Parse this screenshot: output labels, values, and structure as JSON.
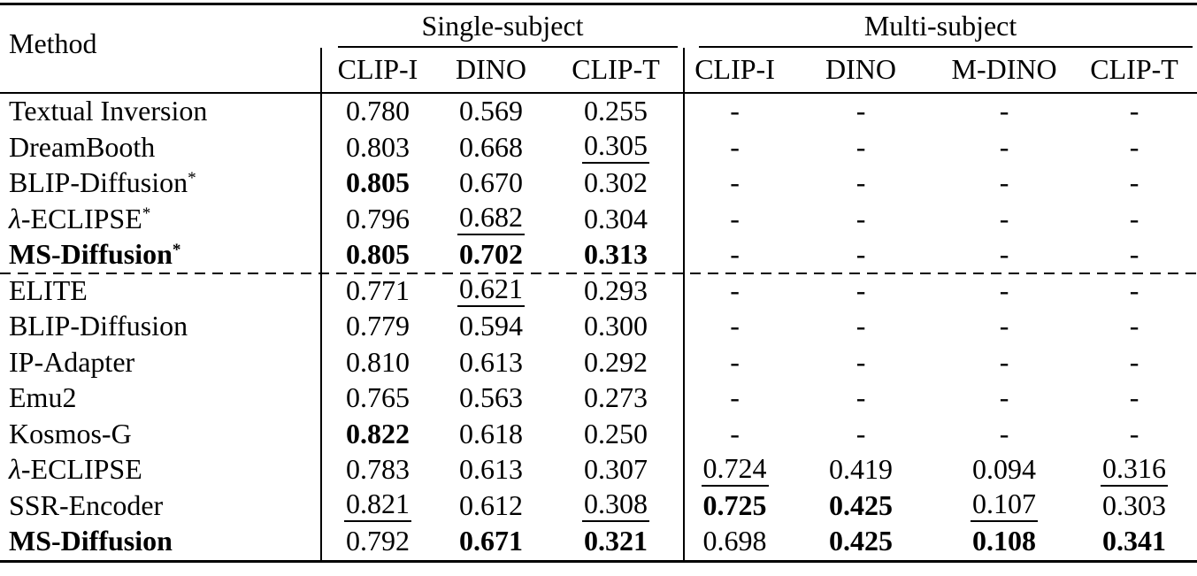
{
  "colors": {
    "text": "#000000",
    "background": "#ffffff",
    "rule": "#000000"
  },
  "table": {
    "method_header": "Method",
    "groups": [
      {
        "label": "Single-subject",
        "columns": [
          "CLIP-I",
          "DINO",
          "CLIP-T"
        ]
      },
      {
        "label": "Multi-subject",
        "columns": [
          "CLIP-I",
          "DINO",
          "M-DINO",
          "CLIP-T"
        ]
      }
    ],
    "sections": [
      {
        "rows": [
          {
            "method": {
              "text": "Textual Inversion",
              "bold": false,
              "sup": ""
            },
            "values": [
              {
                "v": "0.780",
                "fmt": ""
              },
              {
                "v": "0.569",
                "fmt": ""
              },
              {
                "v": "0.255",
                "fmt": ""
              },
              {
                "v": "-",
                "fmt": ""
              },
              {
                "v": "-",
                "fmt": ""
              },
              {
                "v": "-",
                "fmt": ""
              },
              {
                "v": "-",
                "fmt": ""
              }
            ]
          },
          {
            "method": {
              "text": "DreamBooth",
              "bold": false,
              "sup": ""
            },
            "values": [
              {
                "v": "0.803",
                "fmt": ""
              },
              {
                "v": "0.668",
                "fmt": ""
              },
              {
                "v": "0.305",
                "fmt": "u"
              },
              {
                "v": "-",
                "fmt": ""
              },
              {
                "v": "-",
                "fmt": ""
              },
              {
                "v": "-",
                "fmt": ""
              },
              {
                "v": "-",
                "fmt": ""
              }
            ]
          },
          {
            "method": {
              "text": "BLIP-Diffusion",
              "bold": false,
              "sup": "*"
            },
            "values": [
              {
                "v": "0.805",
                "fmt": "b"
              },
              {
                "v": "0.670",
                "fmt": ""
              },
              {
                "v": "0.302",
                "fmt": ""
              },
              {
                "v": "-",
                "fmt": ""
              },
              {
                "v": "-",
                "fmt": ""
              },
              {
                "v": "-",
                "fmt": ""
              },
              {
                "v": "-",
                "fmt": ""
              }
            ]
          },
          {
            "method": {
              "text": "λ-ECLIPSE",
              "bold": false,
              "sup": "*"
            },
            "values": [
              {
                "v": "0.796",
                "fmt": ""
              },
              {
                "v": "0.682",
                "fmt": "u"
              },
              {
                "v": "0.304",
                "fmt": ""
              },
              {
                "v": "-",
                "fmt": ""
              },
              {
                "v": "-",
                "fmt": ""
              },
              {
                "v": "-",
                "fmt": ""
              },
              {
                "v": "-",
                "fmt": ""
              }
            ]
          },
          {
            "method": {
              "text": "MS-Diffusion",
              "bold": true,
              "sup": "*"
            },
            "values": [
              {
                "v": "0.805",
                "fmt": "b"
              },
              {
                "v": "0.702",
                "fmt": "b"
              },
              {
                "v": "0.313",
                "fmt": "b"
              },
              {
                "v": "-",
                "fmt": ""
              },
              {
                "v": "-",
                "fmt": ""
              },
              {
                "v": "-",
                "fmt": ""
              },
              {
                "v": "-",
                "fmt": ""
              }
            ]
          }
        ]
      },
      {
        "rows": [
          {
            "method": {
              "text": "ELITE",
              "bold": false,
              "sup": ""
            },
            "values": [
              {
                "v": "0.771",
                "fmt": ""
              },
              {
                "v": "0.621",
                "fmt": "u"
              },
              {
                "v": "0.293",
                "fmt": ""
              },
              {
                "v": "-",
                "fmt": ""
              },
              {
                "v": "-",
                "fmt": ""
              },
              {
                "v": "-",
                "fmt": ""
              },
              {
                "v": "-",
                "fmt": ""
              }
            ]
          },
          {
            "method": {
              "text": "BLIP-Diffusion",
              "bold": false,
              "sup": ""
            },
            "values": [
              {
                "v": "0.779",
                "fmt": ""
              },
              {
                "v": "0.594",
                "fmt": ""
              },
              {
                "v": "0.300",
                "fmt": ""
              },
              {
                "v": "-",
                "fmt": ""
              },
              {
                "v": "-",
                "fmt": ""
              },
              {
                "v": "-",
                "fmt": ""
              },
              {
                "v": "-",
                "fmt": ""
              }
            ]
          },
          {
            "method": {
              "text": "IP-Adapter",
              "bold": false,
              "sup": ""
            },
            "values": [
              {
                "v": "0.810",
                "fmt": ""
              },
              {
                "v": "0.613",
                "fmt": ""
              },
              {
                "v": "0.292",
                "fmt": ""
              },
              {
                "v": "-",
                "fmt": ""
              },
              {
                "v": "-",
                "fmt": ""
              },
              {
                "v": "-",
                "fmt": ""
              },
              {
                "v": "-",
                "fmt": ""
              }
            ]
          },
          {
            "method": {
              "text": "Emu2",
              "bold": false,
              "sup": ""
            },
            "values": [
              {
                "v": "0.765",
                "fmt": ""
              },
              {
                "v": "0.563",
                "fmt": ""
              },
              {
                "v": "0.273",
                "fmt": ""
              },
              {
                "v": "-",
                "fmt": ""
              },
              {
                "v": "-",
                "fmt": ""
              },
              {
                "v": "-",
                "fmt": ""
              },
              {
                "v": "-",
                "fmt": ""
              }
            ]
          },
          {
            "method": {
              "text": "Kosmos-G",
              "bold": false,
              "sup": ""
            },
            "values": [
              {
                "v": "0.822",
                "fmt": "b"
              },
              {
                "v": "0.618",
                "fmt": ""
              },
              {
                "v": "0.250",
                "fmt": ""
              },
              {
                "v": "-",
                "fmt": ""
              },
              {
                "v": "-",
                "fmt": ""
              },
              {
                "v": "-",
                "fmt": ""
              },
              {
                "v": "-",
                "fmt": ""
              }
            ]
          },
          {
            "method": {
              "text": "λ-ECLIPSE",
              "bold": false,
              "sup": ""
            },
            "values": [
              {
                "v": "0.783",
                "fmt": ""
              },
              {
                "v": "0.613",
                "fmt": ""
              },
              {
                "v": "0.307",
                "fmt": ""
              },
              {
                "v": "0.724",
                "fmt": "u"
              },
              {
                "v": "0.419",
                "fmt": ""
              },
              {
                "v": "0.094",
                "fmt": ""
              },
              {
                "v": "0.316",
                "fmt": "u"
              }
            ]
          },
          {
            "method": {
              "text": "SSR-Encoder",
              "bold": false,
              "sup": ""
            },
            "values": [
              {
                "v": "0.821",
                "fmt": "u"
              },
              {
                "v": "0.612",
                "fmt": ""
              },
              {
                "v": "0.308",
                "fmt": "u"
              },
              {
                "v": "0.725",
                "fmt": "b"
              },
              {
                "v": "0.425",
                "fmt": "b"
              },
              {
                "v": "0.107",
                "fmt": "u"
              },
              {
                "v": "0.303",
                "fmt": ""
              }
            ]
          },
          {
            "method": {
              "text": "MS-Diffusion",
              "bold": true,
              "sup": ""
            },
            "values": [
              {
                "v": "0.792",
                "fmt": ""
              },
              {
                "v": "0.671",
                "fmt": "b"
              },
              {
                "v": "0.321",
                "fmt": "b"
              },
              {
                "v": "0.698",
                "fmt": ""
              },
              {
                "v": "0.425",
                "fmt": "b"
              },
              {
                "v": "0.108",
                "fmt": "b"
              },
              {
                "v": "0.341",
                "fmt": "b"
              }
            ]
          }
        ]
      }
    ]
  }
}
